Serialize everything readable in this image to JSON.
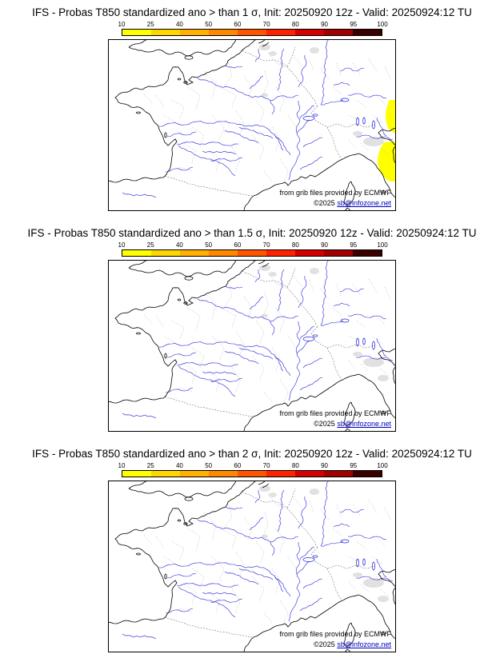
{
  "page": {
    "background": "#ffffff"
  },
  "colorbar": {
    "ticks": [
      "10",
      "25",
      "40",
      "50",
      "60",
      "70",
      "80",
      "90",
      "95",
      "100"
    ],
    "colors": [
      "#ffff00",
      "#ffd700",
      "#ffb000",
      "#ff8800",
      "#ff5500",
      "#ff2200",
      "#d40000",
      "#a00000",
      "#3a0000"
    ]
  },
  "anomaly_color": "#ffff00",
  "panels": [
    {
      "title": "IFS - Probas T850  standardized ano > than 1 σ, Init: 20250920 12z - Valid: 20250924:12 TU",
      "show_anomaly": true,
      "credits": {
        "line1": "from grib files provided by ECMWF",
        "copyright_prefix": "©2025 ",
        "link": "sb@infozone.net"
      }
    },
    {
      "title": "IFS - Probas T850  standardized ano > than 1.5 σ, Init: 20250920 12z - Valid: 20250924:12 TU",
      "show_anomaly": false,
      "credits": {
        "line1": "from grib files provided by ECMWF",
        "copyright_prefix": "©2025 ",
        "link": "sb@infozone.net"
      }
    },
    {
      "title": "IFS - Probas T850  standardized ano > than 2 σ, Init: 20250920 12z - Valid: 20250924:12 TU",
      "show_anomaly": false,
      "credits": {
        "line1": "from grib files provided by ECMWF",
        "copyright_prefix": "©2025 ",
        "link": "sb@infozone.net"
      }
    }
  ]
}
